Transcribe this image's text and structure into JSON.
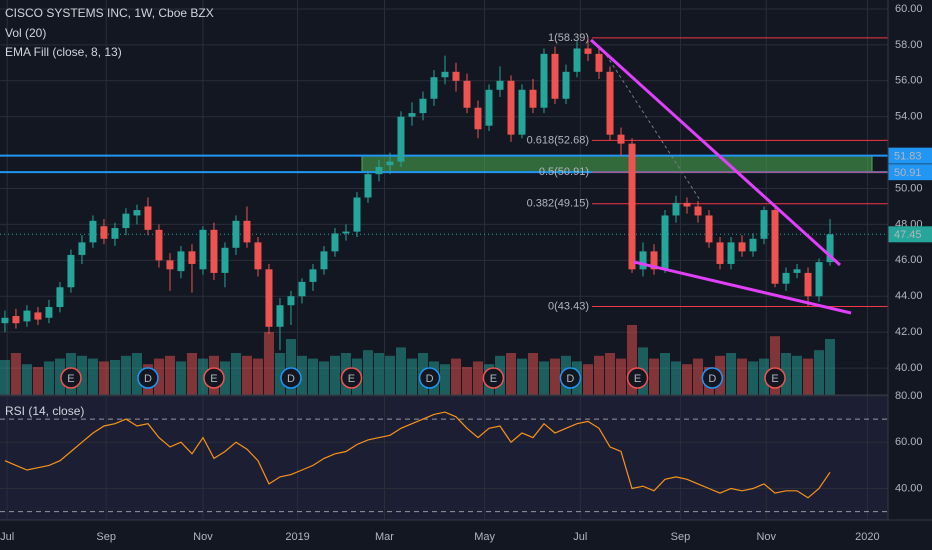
{
  "chart_data": {
    "type": "candlestick",
    "title": "CISCO SYSTEMS INC, 1W, Cboe BZX",
    "indicators": [
      "Vol (20)",
      "EMA Fill (close, 8, 13)"
    ],
    "colors": {
      "up": "#26a69a",
      "down": "#ef5350",
      "level": "#2196f3",
      "fib": "#f23645",
      "zone": "#4caf50"
    },
    "xlim": [
      -0.45,
      80.27
    ],
    "xticks": [
      {
        "value": 0.2,
        "label": "Jul"
      },
      {
        "value": 9.2,
        "label": "Sep"
      },
      {
        "value": 18,
        "label": "Nov"
      },
      {
        "value": 26.6,
        "label": "2019"
      },
      {
        "value": 34.5,
        "label": "Mar"
      },
      {
        "value": 43.6,
        "label": "May"
      },
      {
        "value": 52.3,
        "label": "Jul"
      },
      {
        "value": 61.4,
        "label": "Sep"
      },
      {
        "value": 69.2,
        "label": "Nov"
      },
      {
        "value": 78.4,
        "label": "2020"
      }
    ],
    "ylim": [
      38.5,
      60.5
    ],
    "yticks": [
      {
        "value": 40,
        "label": "40.00"
      },
      {
        "value": 42,
        "label": "42.00"
      },
      {
        "value": 44,
        "label": "44.00"
      },
      {
        "value": 46,
        "label": "46.00"
      },
      {
        "value": 48,
        "label": "48.00"
      },
      {
        "value": 50,
        "label": "50.00"
      },
      {
        "value": 54,
        "label": "54.00"
      },
      {
        "value": 56,
        "label": "56.00"
      },
      {
        "value": 58,
        "label": "58.00"
      },
      {
        "value": 60,
        "label": "60.00"
      }
    ],
    "grid": true,
    "ohlc": [
      [
        42.5,
        43.2,
        42.0,
        42.8
      ],
      [
        42.9,
        43.3,
        42.2,
        42.5
      ],
      [
        42.6,
        43.5,
        42.3,
        43.2
      ],
      [
        43.1,
        43.4,
        42.4,
        42.7
      ],
      [
        42.8,
        43.8,
        42.5,
        43.4
      ],
      [
        43.4,
        44.8,
        43.1,
        44.5
      ],
      [
        44.5,
        46.6,
        44.2,
        46.3
      ],
      [
        46.3,
        47.4,
        45.8,
        47.0
      ],
      [
        47.0,
        48.5,
        46.7,
        48.2
      ],
      [
        47.9,
        48.3,
        46.9,
        47.2
      ],
      [
        47.2,
        48.1,
        46.8,
        47.8
      ],
      [
        47.8,
        48.9,
        47.4,
        48.6
      ],
      [
        48.5,
        49.1,
        48.0,
        48.8
      ],
      [
        49.0,
        49.5,
        47.4,
        47.7
      ],
      [
        47.7,
        48.0,
        45.6,
        46.0
      ],
      [
        46.0,
        46.4,
        44.3,
        45.5
      ],
      [
        45.4,
        46.8,
        45.0,
        46.5
      ],
      [
        46.5,
        46.9,
        44.2,
        45.8
      ],
      [
        45.5,
        47.9,
        45.2,
        47.7
      ],
      [
        47.7,
        48.1,
        44.9,
        45.3
      ],
      [
        45.3,
        47.0,
        44.5,
        46.7
      ],
      [
        46.7,
        48.5,
        46.3,
        48.2
      ],
      [
        48.2,
        49.0,
        46.7,
        47.0
      ],
      [
        47.0,
        47.3,
        45.1,
        45.5
      ],
      [
        45.5,
        45.8,
        41.9,
        42.3
      ],
      [
        42.3,
        43.9,
        41.0,
        43.5
      ],
      [
        43.5,
        44.3,
        42.4,
        44.0
      ],
      [
        44.0,
        45.0,
        43.6,
        44.8
      ],
      [
        44.8,
        45.8,
        44.3,
        45.5
      ],
      [
        45.5,
        46.8,
        45.2,
        46.5
      ],
      [
        46.5,
        47.8,
        46.2,
        47.5
      ],
      [
        47.5,
        48.0,
        47.1,
        47.6
      ],
      [
        47.6,
        49.8,
        47.3,
        49.5
      ],
      [
        49.5,
        51.0,
        49.2,
        50.8
      ],
      [
        50.8,
        51.6,
        50.4,
        51.2
      ],
      [
        51.3,
        52.0,
        50.8,
        51.5
      ],
      [
        51.5,
        54.3,
        51.2,
        54.0
      ],
      [
        54.0,
        54.8,
        53.5,
        54.2
      ],
      [
        54.2,
        55.4,
        53.8,
        55.0
      ],
      [
        55.0,
        56.6,
        54.6,
        56.2
      ],
      [
        56.2,
        57.4,
        55.8,
        56.5
      ],
      [
        56.5,
        57.0,
        55.4,
        56.0
      ],
      [
        56.0,
        56.4,
        54.2,
        54.5
      ],
      [
        54.5,
        54.9,
        52.8,
        53.3
      ],
      [
        53.5,
        55.8,
        53.2,
        55.5
      ],
      [
        55.5,
        56.8,
        55.1,
        56.0
      ],
      [
        56.0,
        56.3,
        52.6,
        53.0
      ],
      [
        53.0,
        55.8,
        52.8,
        55.5
      ],
      [
        55.5,
        56.1,
        54.2,
        54.5
      ],
      [
        54.5,
        57.8,
        54.2,
        57.5
      ],
      [
        57.5,
        57.9,
        54.7,
        55.0
      ],
      [
        55.0,
        56.9,
        54.7,
        56.5
      ],
      [
        56.5,
        58.2,
        56.2,
        57.8
      ],
      [
        57.8,
        58.39,
        57.1,
        57.5
      ],
      [
        57.5,
        57.9,
        56.1,
        56.5
      ],
      [
        56.5,
        56.8,
        52.7,
        53.0
      ],
      [
        53.0,
        53.4,
        51.8,
        52.5
      ],
      [
        52.5,
        52.8,
        45.3,
        45.5
      ],
      [
        45.5,
        47.0,
        45.1,
        46.5
      ],
      [
        46.5,
        46.9,
        45.2,
        45.5
      ],
      [
        45.5,
        48.8,
        45.3,
        48.5
      ],
      [
        48.5,
        49.6,
        48.1,
        49.2
      ],
      [
        49.2,
        49.5,
        48.6,
        49.0
      ],
      [
        49.0,
        49.3,
        48.1,
        48.5
      ],
      [
        48.5,
        48.8,
        46.7,
        47.0
      ],
      [
        47.0,
        47.3,
        45.5,
        45.8
      ],
      [
        45.8,
        47.3,
        45.5,
        47.0
      ],
      [
        47.0,
        47.4,
        46.2,
        46.5
      ],
      [
        46.5,
        47.5,
        46.2,
        47.2
      ],
      [
        47.2,
        49.0,
        46.9,
        48.8
      ],
      [
        48.8,
        49.0,
        44.5,
        44.7
      ],
      [
        44.7,
        45.6,
        44.3,
        45.3
      ],
      [
        45.3,
        45.8,
        45.0,
        45.5
      ],
      [
        45.3,
        45.6,
        43.43,
        44.0
      ],
      [
        44.0,
        46.1,
        43.7,
        45.9
      ],
      [
        45.9,
        48.3,
        45.7,
        47.45
      ]
    ],
    "volume": [
      25,
      30,
      22,
      20,
      24,
      26,
      30,
      28,
      26,
      24,
      25,
      28,
      30,
      22,
      26,
      28,
      24,
      30,
      26,
      28,
      24,
      30,
      28,
      26,
      45,
      30,
      40,
      28,
      26,
      24,
      28,
      30,
      26,
      32,
      30,
      28,
      34,
      26,
      30,
      24,
      22,
      26,
      20,
      24,
      22,
      28,
      30,
      26,
      30,
      24,
      26,
      28,
      24,
      22,
      28,
      30,
      26,
      50,
      34,
      26,
      30,
      24,
      22,
      26,
      20,
      28,
      30,
      26,
      24,
      26,
      42,
      30,
      28,
      26,
      32,
      40
    ],
    "levels": [
      51.83,
      50.91
    ],
    "last_price": 47.45,
    "fib": [
      {
        "label": "1(58.39)",
        "value": 58.39
      },
      {
        "label": "0.618(52.68)",
        "value": 52.68
      },
      {
        "label": "0.5(50.91)",
        "value": 50.91
      },
      {
        "label": "0.382(49.15)",
        "value": 49.15
      },
      {
        "label": "0(43.43)",
        "value": 43.43
      }
    ],
    "events": [
      "E",
      "D",
      "E",
      "D",
      "E",
      "D",
      "E",
      "D",
      "E",
      "D",
      "E"
    ],
    "rsi": {
      "title": "RSI (14, close)",
      "color": "#f7931a",
      "ylim": [
        26.4,
        80.4
      ],
      "yticks": [
        {
          "value": 80,
          "label": "80.00"
        },
        {
          "value": 60,
          "label": "60.00"
        },
        {
          "value": 40,
          "label": "40.00"
        }
      ],
      "bands": [
        70,
        30
      ],
      "values": [
        52,
        50,
        48,
        49,
        50,
        52,
        56,
        60,
        64,
        67,
        68,
        70,
        67,
        68,
        62,
        58,
        60,
        55,
        62,
        53,
        56,
        60,
        57,
        52,
        42,
        45,
        46,
        48,
        50,
        53,
        55,
        56,
        59,
        61,
        62,
        63,
        66,
        68,
        70,
        72,
        73,
        71,
        66,
        62,
        66,
        67,
        60,
        64,
        62,
        68,
        64,
        66,
        68,
        69,
        66,
        58,
        56,
        40,
        41,
        39,
        44,
        45,
        44,
        42,
        40,
        38,
        40,
        39,
        40,
        42,
        38,
        39,
        39,
        36,
        40,
        47
      ]
    }
  }
}
